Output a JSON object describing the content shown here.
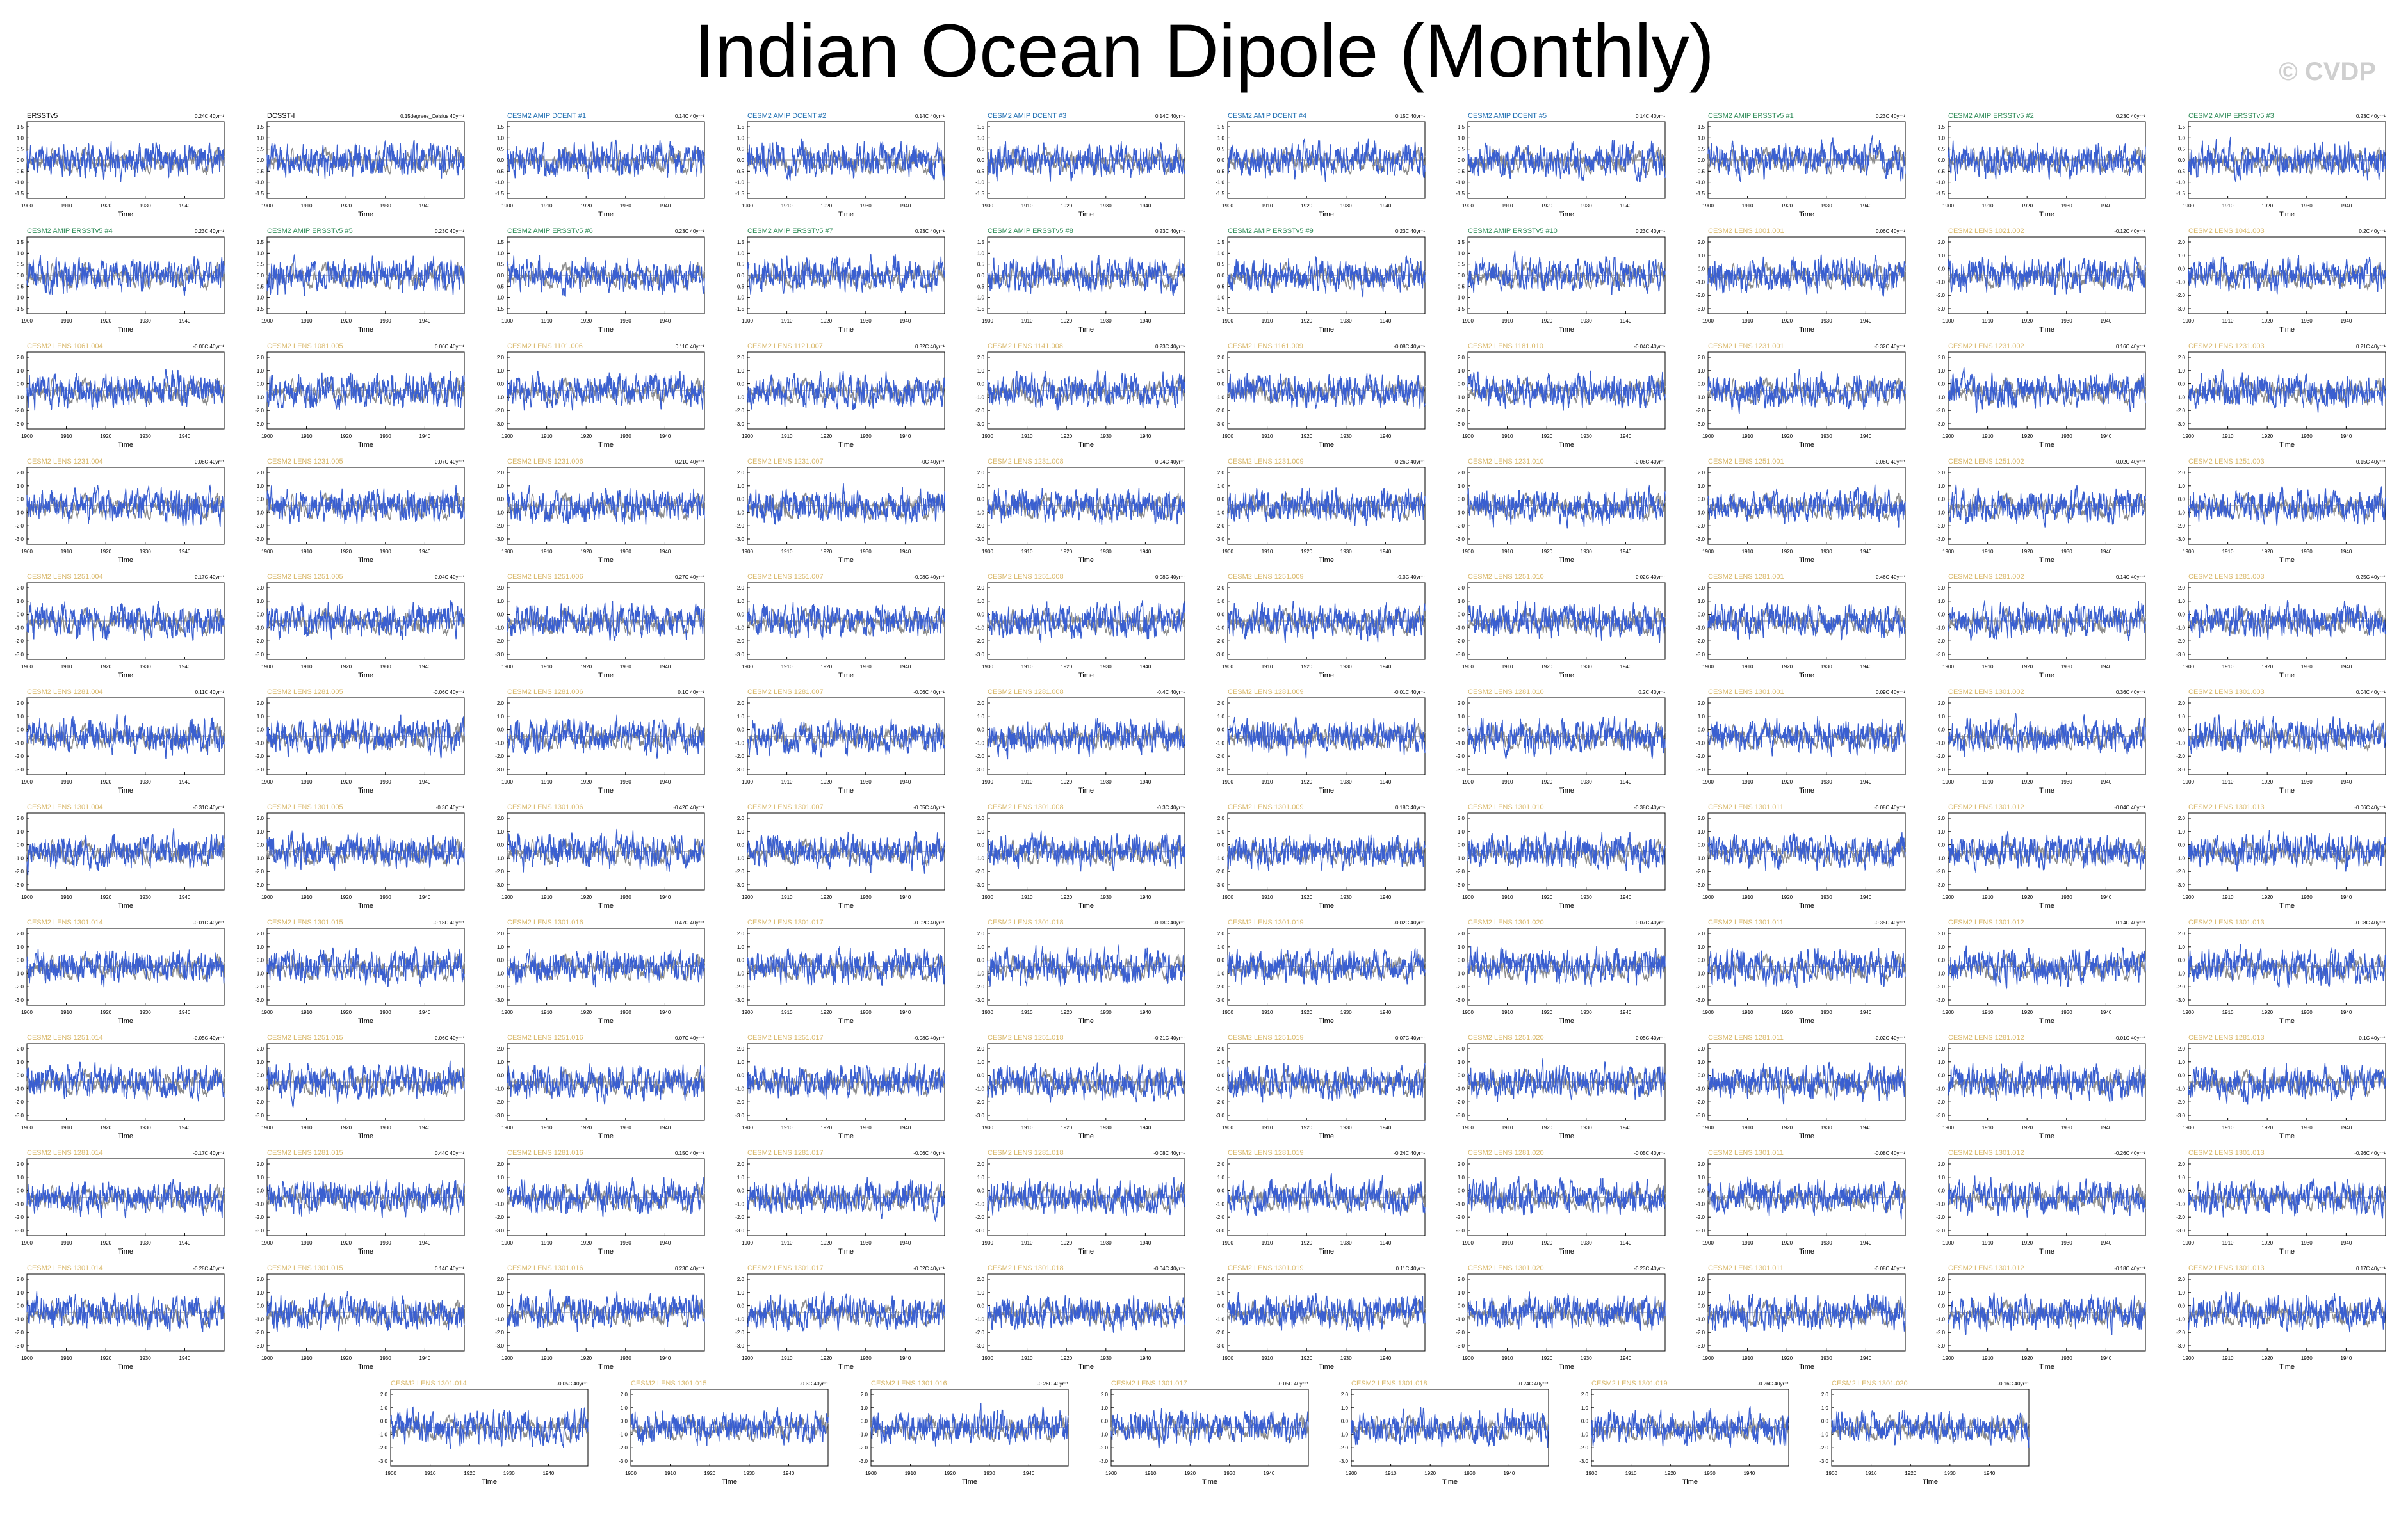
{
  "title": "Indian Ocean Dipole (Monthly)",
  "watermark": "© CVDP",
  "colors": {
    "model": "#3a5fd0",
    "obs": "#8c8c8c",
    "label_obs": "#000000",
    "label_dcent": "#1f6fb2",
    "label_ersst": "#2e8b57",
    "label_lens": "#d9b86b"
  },
  "chart_data": {
    "type": "line",
    "xlabel": "Time",
    "x_ticks": [
      "1900",
      "1910",
      "1920",
      "1930",
      "1940"
    ],
    "xlim": [
      1900,
      1950
    ],
    "trend_units": "°C 40yr⁻¹",
    "y_ticks_a": [
      "1.5",
      "1.0",
      "0.5",
      "0.0",
      "-0.5",
      "-1.0",
      "-1.5"
    ],
    "y_ticks_b": [
      "2.0",
      "1.0",
      "0.0",
      "-1.0",
      "-2.0",
      "-3.0"
    ],
    "panels": [
      {
        "label": "ERSSTv5",
        "group": "obs",
        "trend": "0.24C 40yr⁻¹"
      },
      {
        "label": "DCSST-I",
        "group": "obs",
        "trend": "0.15degrees_Celsius 40yr⁻¹"
      },
      {
        "label": "CESM2 AMIP DCENT #1",
        "group": "dcent",
        "trend": "0.14C 40yr⁻¹"
      },
      {
        "label": "CESM2 AMIP DCENT #2",
        "group": "dcent",
        "trend": "0.14C 40yr⁻¹"
      },
      {
        "label": "CESM2 AMIP DCENT #3",
        "group": "dcent",
        "trend": "0.14C 40yr⁻¹"
      },
      {
        "label": "CESM2 AMIP DCENT #4",
        "group": "dcent",
        "trend": "0.15C 40yr⁻¹"
      },
      {
        "label": "CESM2 AMIP DCENT #5",
        "group": "dcent",
        "trend": "0.14C 40yr⁻¹"
      },
      {
        "label": "CESM2 AMIP ERSSTv5 #1",
        "group": "ersst",
        "trend": "0.23C 40yr⁻¹"
      },
      {
        "label": "CESM2 AMIP ERSSTv5 #2",
        "group": "ersst",
        "trend": "0.23C 40yr⁻¹"
      },
      {
        "label": "CESM2 AMIP ERSSTv5 #3",
        "group": "ersst",
        "trend": "0.23C 40yr⁻¹"
      },
      {
        "label": "CESM2 AMIP ERSSTv5 #4",
        "group": "ersst",
        "trend": "0.23C 40yr⁻¹"
      },
      {
        "label": "CESM2 AMIP ERSSTv5 #5",
        "group": "ersst",
        "trend": "0.23C 40yr⁻¹"
      },
      {
        "label": "CESM2 AMIP ERSSTv5 #6",
        "group": "ersst",
        "trend": "0.23C 40yr⁻¹"
      },
      {
        "label": "CESM2 AMIP ERSSTv5 #7",
        "group": "ersst",
        "trend": "0.23C 40yr⁻¹"
      },
      {
        "label": "CESM2 AMIP ERSSTv5 #8",
        "group": "ersst",
        "trend": "0.23C 40yr⁻¹"
      },
      {
        "label": "CESM2 AMIP ERSSTv5 #9",
        "group": "ersst",
        "trend": "0.23C 40yr⁻¹"
      },
      {
        "label": "CESM2 AMIP ERSSTv5 #10",
        "group": "ersst",
        "trend": "0.23C 40yr⁻¹"
      },
      {
        "label": "CESM2 LENS 1001.001",
        "group": "lens",
        "trend": "0.06C 40yr⁻¹"
      },
      {
        "label": "CESM2 LENS 1021.002",
        "group": "lens",
        "trend": "-0.12C 40yr⁻¹"
      },
      {
        "label": "CESM2 LENS 1041.003",
        "group": "lens",
        "trend": "0.2C 40yr⁻¹"
      },
      {
        "label": "CESM2 LENS 1061.004",
        "group": "lens",
        "trend": "-0.06C 40yr⁻¹"
      },
      {
        "label": "CESM2 LENS 1081.005",
        "group": "lens",
        "trend": "0.06C 40yr⁻¹"
      },
      {
        "label": "CESM2 LENS 1101.006",
        "group": "lens",
        "trend": "0.11C 40yr⁻¹"
      },
      {
        "label": "CESM2 LENS 1121.007",
        "group": "lens",
        "trend": "0.32C 40yr⁻¹"
      },
      {
        "label": "CESM2 LENS 1141.008",
        "group": "lens",
        "trend": "0.23C 40yr⁻¹"
      },
      {
        "label": "CESM2 LENS 1161.009",
        "group": "lens",
        "trend": "-0.08C 40yr⁻¹"
      },
      {
        "label": "CESM2 LENS 1181.010",
        "group": "lens",
        "trend": "-0.04C 40yr⁻¹"
      },
      {
        "label": "CESM2 LENS 1231.001",
        "group": "lens",
        "trend": "-0.32C 40yr⁻¹"
      },
      {
        "label": "CESM2 LENS 1231.002",
        "group": "lens",
        "trend": "0.16C 40yr⁻¹"
      },
      {
        "label": "CESM2 LENS 1231.003",
        "group": "lens",
        "trend": "0.21C 40yr⁻¹"
      },
      {
        "label": "CESM2 LENS 1231.004",
        "group": "lens",
        "trend": "0.08C 40yr⁻¹"
      },
      {
        "label": "CESM2 LENS 1231.005",
        "group": "lens",
        "trend": "0.07C 40yr⁻¹"
      },
      {
        "label": "CESM2 LENS 1231.006",
        "group": "lens",
        "trend": "0.21C 40yr⁻¹"
      },
      {
        "label": "CESM2 LENS 1231.007",
        "group": "lens",
        "trend": "-0C 40yr⁻¹"
      },
      {
        "label": "CESM2 LENS 1231.008",
        "group": "lens",
        "trend": "0.04C 40yr⁻¹"
      },
      {
        "label": "CESM2 LENS 1231.009",
        "group": "lens",
        "trend": "-0.26C 40yr⁻¹"
      },
      {
        "label": "CESM2 LENS 1231.010",
        "group": "lens",
        "trend": "-0.08C 40yr⁻¹"
      },
      {
        "label": "CESM2 LENS 1251.001",
        "group": "lens",
        "trend": "-0.08C 40yr⁻¹"
      },
      {
        "label": "CESM2 LENS 1251.002",
        "group": "lens",
        "trend": "-0.02C 40yr⁻¹"
      },
      {
        "label": "CESM2 LENS 1251.003",
        "group": "lens",
        "trend": "0.15C 40yr⁻¹"
      },
      {
        "label": "CESM2 LENS 1251.004",
        "group": "lens",
        "trend": "0.17C 40yr⁻¹"
      },
      {
        "label": "CESM2 LENS 1251.005",
        "group": "lens",
        "trend": "0.04C 40yr⁻¹"
      },
      {
        "label": "CESM2 LENS 1251.006",
        "group": "lens",
        "trend": "0.27C 40yr⁻¹"
      },
      {
        "label": "CESM2 LENS 1251.007",
        "group": "lens",
        "trend": "-0.08C 40yr⁻¹"
      },
      {
        "label": "CESM2 LENS 1251.008",
        "group": "lens",
        "trend": "0.08C 40yr⁻¹"
      },
      {
        "label": "CESM2 LENS 1251.009",
        "group": "lens",
        "trend": "-0.3C 40yr⁻¹"
      },
      {
        "label": "CESM2 LENS 1251.010",
        "group": "lens",
        "trend": "0.02C 40yr⁻¹"
      },
      {
        "label": "CESM2 LENS 1281.001",
        "group": "lens",
        "trend": "0.46C 40yr⁻¹"
      },
      {
        "label": "CESM2 LENS 1281.002",
        "group": "lens",
        "trend": "0.14C 40yr⁻¹"
      },
      {
        "label": "CESM2 LENS 1281.003",
        "group": "lens",
        "trend": "0.25C 40yr⁻¹"
      },
      {
        "label": "CESM2 LENS 1281.004",
        "group": "lens",
        "trend": "0.11C 40yr⁻¹"
      },
      {
        "label": "CESM2 LENS 1281.005",
        "group": "lens",
        "trend": "-0.06C 40yr⁻¹"
      },
      {
        "label": "CESM2 LENS 1281.006",
        "group": "lens",
        "trend": "0.1C 40yr⁻¹"
      },
      {
        "label": "CESM2 LENS 1281.007",
        "group": "lens",
        "trend": "-0.06C 40yr⁻¹"
      },
      {
        "label": "CESM2 LENS 1281.008",
        "group": "lens",
        "trend": "-0.4C 40yr⁻¹"
      },
      {
        "label": "CESM2 LENS 1281.009",
        "group": "lens",
        "trend": "-0.01C 40yr⁻¹"
      },
      {
        "label": "CESM2 LENS 1281.010",
        "group": "lens",
        "trend": "0.2C 40yr⁻¹"
      },
      {
        "label": "CESM2 LENS 1301.001",
        "group": "lens",
        "trend": "0.09C 40yr⁻¹"
      },
      {
        "label": "CESM2 LENS 1301.002",
        "group": "lens",
        "trend": "0.36C 40yr⁻¹"
      },
      {
        "label": "CESM2 LENS 1301.003",
        "group": "lens",
        "trend": "0.04C 40yr⁻¹"
      },
      {
        "label": "CESM2 LENS 1301.004",
        "group": "lens",
        "trend": "-0.31C 40yr⁻¹"
      },
      {
        "label": "CESM2 LENS 1301.005",
        "group": "lens",
        "trend": "-0.3C 40yr⁻¹"
      },
      {
        "label": "CESM2 LENS 1301.006",
        "group": "lens",
        "trend": "-0.42C 40yr⁻¹"
      },
      {
        "label": "CESM2 LENS 1301.007",
        "group": "lens",
        "trend": "-0.05C 40yr⁻¹"
      },
      {
        "label": "CESM2 LENS 1301.008",
        "group": "lens",
        "trend": "-0.3C 40yr⁻¹"
      },
      {
        "label": "CESM2 LENS 1301.009",
        "group": "lens",
        "trend": "0.18C 40yr⁻¹"
      },
      {
        "label": "CESM2 LENS 1301.010",
        "group": "lens",
        "trend": "-0.38C 40yr⁻¹"
      },
      {
        "label": "CESM2 LENS 1301.011",
        "group": "lens",
        "trend": "-0.08C 40yr⁻¹"
      },
      {
        "label": "CESM2 LENS 1301.012",
        "group": "lens",
        "trend": "-0.04C 40yr⁻¹"
      },
      {
        "label": "CESM2 LENS 1301.013",
        "group": "lens",
        "trend": "-0.06C 40yr⁻¹"
      },
      {
        "label": "CESM2 LENS 1301.014",
        "group": "lens",
        "trend": "-0.01C 40yr⁻¹"
      },
      {
        "label": "CESM2 LENS 1301.015",
        "group": "lens",
        "trend": "-0.18C 40yr⁻¹"
      },
      {
        "label": "CESM2 LENS 1301.016",
        "group": "lens",
        "trend": "0.47C 40yr⁻¹"
      },
      {
        "label": "CESM2 LENS 1301.017",
        "group": "lens",
        "trend": "-0.02C 40yr⁻¹"
      },
      {
        "label": "CESM2 LENS 1301.018",
        "group": "lens",
        "trend": "-0.18C 40yr⁻¹"
      },
      {
        "label": "CESM2 LENS 1301.019",
        "group": "lens",
        "trend": "-0.02C 40yr⁻¹"
      },
      {
        "label": "CESM2 LENS 1301.020",
        "group": "lens",
        "trend": "0.07C 40yr⁻¹"
      },
      {
        "label": "CESM2 LENS 1301.011",
        "group": "lens",
        "trend": "-0.35C 40yr⁻¹"
      },
      {
        "label": "CESM2 LENS 1301.012",
        "group": "lens",
        "trend": "0.14C 40yr⁻¹"
      },
      {
        "label": "CESM2 LENS 1301.013",
        "group": "lens",
        "trend": "-0.08C 40yr⁻¹"
      },
      {
        "label": "CESM2 LENS 1251.014",
        "group": "lens",
        "trend": "-0.05C 40yr⁻¹"
      },
      {
        "label": "CESM2 LENS 1251.015",
        "group": "lens",
        "trend": "0.06C 40yr⁻¹"
      },
      {
        "label": "CESM2 LENS 1251.016",
        "group": "lens",
        "trend": "0.07C 40yr⁻¹"
      },
      {
        "label": "CESM2 LENS 1251.017",
        "group": "lens",
        "trend": "-0.08C 40yr⁻¹"
      },
      {
        "label": "CESM2 LENS 1251.018",
        "group": "lens",
        "trend": "-0.21C 40yr⁻¹"
      },
      {
        "label": "CESM2 LENS 1251.019",
        "group": "lens",
        "trend": "0.07C 40yr⁻¹"
      },
      {
        "label": "CESM2 LENS 1251.020",
        "group": "lens",
        "trend": "0.05C 40yr⁻¹"
      },
      {
        "label": "CESM2 LENS 1281.011",
        "group": "lens",
        "trend": "-0.02C 40yr⁻¹"
      },
      {
        "label": "CESM2 LENS 1281.012",
        "group": "lens",
        "trend": "-0.01C 40yr⁻¹"
      },
      {
        "label": "CESM2 LENS 1281.013",
        "group": "lens",
        "trend": "0.1C 40yr⁻¹"
      },
      {
        "label": "CESM2 LENS 1281.014",
        "group": "lens",
        "trend": "-0.17C 40yr⁻¹"
      },
      {
        "label": "CESM2 LENS 1281.015",
        "group": "lens",
        "trend": "0.44C 40yr⁻¹"
      },
      {
        "label": "CESM2 LENS 1281.016",
        "group": "lens",
        "trend": "0.15C 40yr⁻¹"
      },
      {
        "label": "CESM2 LENS 1281.017",
        "group": "lens",
        "trend": "-0.06C 40yr⁻¹"
      },
      {
        "label": "CESM2 LENS 1281.018",
        "group": "lens",
        "trend": "-0.08C 40yr⁻¹"
      },
      {
        "label": "CESM2 LENS 1281.019",
        "group": "lens",
        "trend": "-0.24C 40yr⁻¹"
      },
      {
        "label": "CESM2 LENS 1281.020",
        "group": "lens",
        "trend": "-0.05C 40yr⁻¹"
      },
      {
        "label": "CESM2 LENS 1301.011",
        "group": "lens",
        "trend": "-0.08C 40yr⁻¹"
      },
      {
        "label": "CESM2 LENS 1301.012",
        "group": "lens",
        "trend": "-0.26C 40yr⁻¹"
      },
      {
        "label": "CESM2 LENS 1301.013",
        "group": "lens",
        "trend": "-0.26C 40yr⁻¹"
      },
      {
        "label": "CESM2 LENS 1301.014",
        "group": "lens",
        "trend": "-0.28C 40yr⁻¹"
      },
      {
        "label": "CESM2 LENS 1301.015",
        "group": "lens",
        "trend": "0.14C 40yr⁻¹"
      },
      {
        "label": "CESM2 LENS 1301.016",
        "group": "lens",
        "trend": "0.23C 40yr⁻¹"
      },
      {
        "label": "CESM2 LENS 1301.017",
        "group": "lens",
        "trend": "-0.02C 40yr⁻¹"
      },
      {
        "label": "CESM2 LENS 1301.018",
        "group": "lens",
        "trend": "-0.04C 40yr⁻¹"
      },
      {
        "label": "CESM2 LENS 1301.019",
        "group": "lens",
        "trend": "0.11C 40yr⁻¹"
      },
      {
        "label": "CESM2 LENS 1301.020",
        "group": "lens",
        "trend": "-0.23C 40yr⁻¹"
      },
      {
        "label": "CESM2 LENS 1301.011",
        "group": "lens",
        "trend": "-0.08C 40yr⁻¹"
      },
      {
        "label": "CESM2 LENS 1301.012",
        "group": "lens",
        "trend": "-0.18C 40yr⁻¹"
      },
      {
        "label": "CESM2 LENS 1301.013",
        "group": "lens",
        "trend": "0.17C 40yr⁻¹"
      },
      {
        "label": "CESM2 LENS 1301.014",
        "group": "lens",
        "trend": "-0.05C 40yr⁻¹"
      },
      {
        "label": "CESM2 LENS 1301.015",
        "group": "lens",
        "trend": "-0.3C 40yr⁻¹"
      },
      {
        "label": "CESM2 LENS 1301.016",
        "group": "lens",
        "trend": "-0.26C 40yr⁻¹"
      },
      {
        "label": "CESM2 LENS 1301.017",
        "group": "lens",
        "trend": "-0.05C 40yr⁻¹"
      },
      {
        "label": "CESM2 LENS 1301.018",
        "group": "lens",
        "trend": "-0.24C 40yr⁻¹"
      },
      {
        "label": "CESM2 LENS 1301.019",
        "group": "lens",
        "trend": "-0.26C 40yr⁻¹"
      },
      {
        "label": "CESM2 LENS 1301.020",
        "group": "lens",
        "trend": "-0.16C 40yr⁻¹"
      }
    ]
  }
}
